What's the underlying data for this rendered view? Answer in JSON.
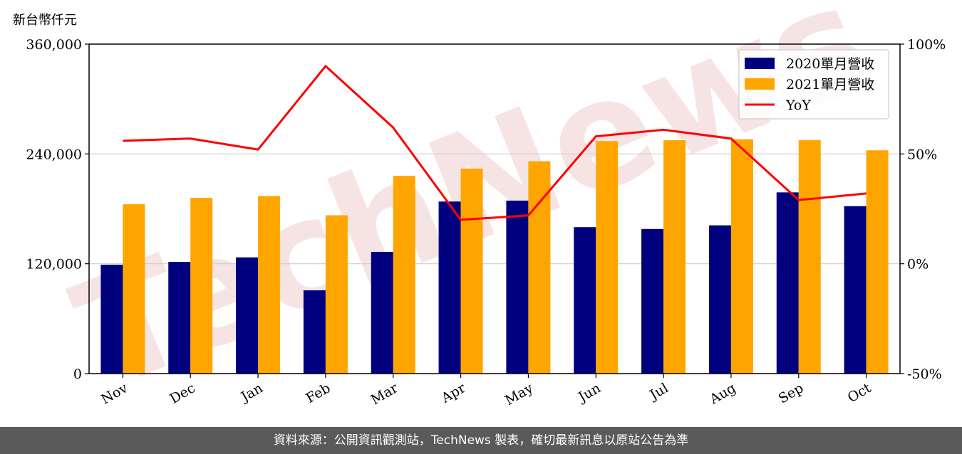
{
  "unit_label": "新台幣仟元",
  "footer_text": "資料來源：公開資訊觀測站，TechNews 製表，確切最新訊息以原站公告為準",
  "watermark_text": "TechNews",
  "colors": {
    "series_2020": "#00007f",
    "series_2021": "#ffa500",
    "yoy": "#ff0000",
    "grid": "#cccccc",
    "watermark": "#f4dcdc"
  },
  "chart_data": {
    "type": "bar",
    "categories": [
      "Nov",
      "Dec",
      "Jan",
      "Feb",
      "Mar",
      "Apr",
      "May",
      "Jun",
      "Jul",
      "Aug",
      "Sep",
      "Oct"
    ],
    "series": [
      {
        "name": "2020單月營收",
        "kind": "bar",
        "values": [
          119000,
          122000,
          127000,
          91000,
          133000,
          188000,
          189000,
          160000,
          158000,
          162000,
          198000,
          183000
        ]
      },
      {
        "name": "2021單月營收",
        "kind": "bar",
        "values": [
          185000,
          192000,
          194000,
          173000,
          216000,
          224000,
          232000,
          254000,
          255000,
          256000,
          255000,
          244000
        ]
      },
      {
        "name": "YoY",
        "kind": "line",
        "axis": "right",
        "values": [
          56,
          57,
          52,
          90,
          62,
          20,
          22,
          58,
          61,
          57,
          29,
          32
        ]
      }
    ],
    "yleft": {
      "min": 0,
      "max": 360000,
      "ticks": [
        "0",
        "120,000",
        "240,000",
        "360,000"
      ],
      "tick_values": [
        0,
        120000,
        240000,
        360000
      ]
    },
    "yright": {
      "min": -50,
      "max": 100,
      "ticks": [
        "-50%",
        "0%",
        "50%",
        "100%"
      ],
      "tick_values": [
        -50,
        0,
        50,
        100
      ]
    },
    "grid": "horizontal",
    "legend": "top-right"
  }
}
